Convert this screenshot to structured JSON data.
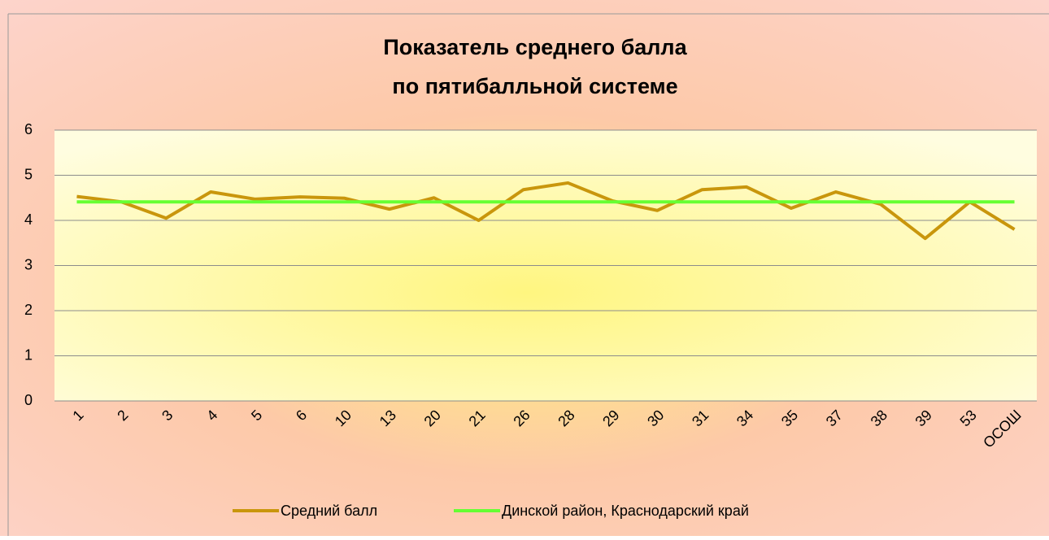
{
  "chart_data": {
    "type": "line",
    "title": [
      "Показатель среднего балла",
      "по пятибалльной системе"
    ],
    "categories": [
      "1",
      "2",
      "3",
      "4",
      "5",
      "6",
      "10",
      "13",
      "20",
      "21",
      "26",
      "28",
      "29",
      "30",
      "31",
      "34",
      "35",
      "37",
      "38",
      "39",
      "53",
      "ОСОШ"
    ],
    "series": [
      {
        "name": "Средний балл",
        "color": "#c9960c",
        "values": [
          4.53,
          4.41,
          4.05,
          4.63,
          4.47,
          4.52,
          4.49,
          4.25,
          4.5,
          4.0,
          4.68,
          4.83,
          4.43,
          4.22,
          4.68,
          4.74,
          4.27,
          4.63,
          4.36,
          3.6,
          4.41,
          3.8
        ]
      },
      {
        "name": "Динской район, Краснодарский край",
        "color": "#66ff33",
        "values": [
          4.41,
          4.41,
          4.41,
          4.41,
          4.41,
          4.41,
          4.41,
          4.41,
          4.41,
          4.41,
          4.41,
          4.41,
          4.41,
          4.41,
          4.41,
          4.41,
          4.41,
          4.41,
          4.41,
          4.41,
          4.41,
          4.41
        ]
      }
    ],
    "ylim": [
      0,
      6
    ],
    "yticks": [
      0,
      1,
      2,
      3,
      4,
      5,
      6
    ],
    "grid": true,
    "legend": "bottom"
  }
}
